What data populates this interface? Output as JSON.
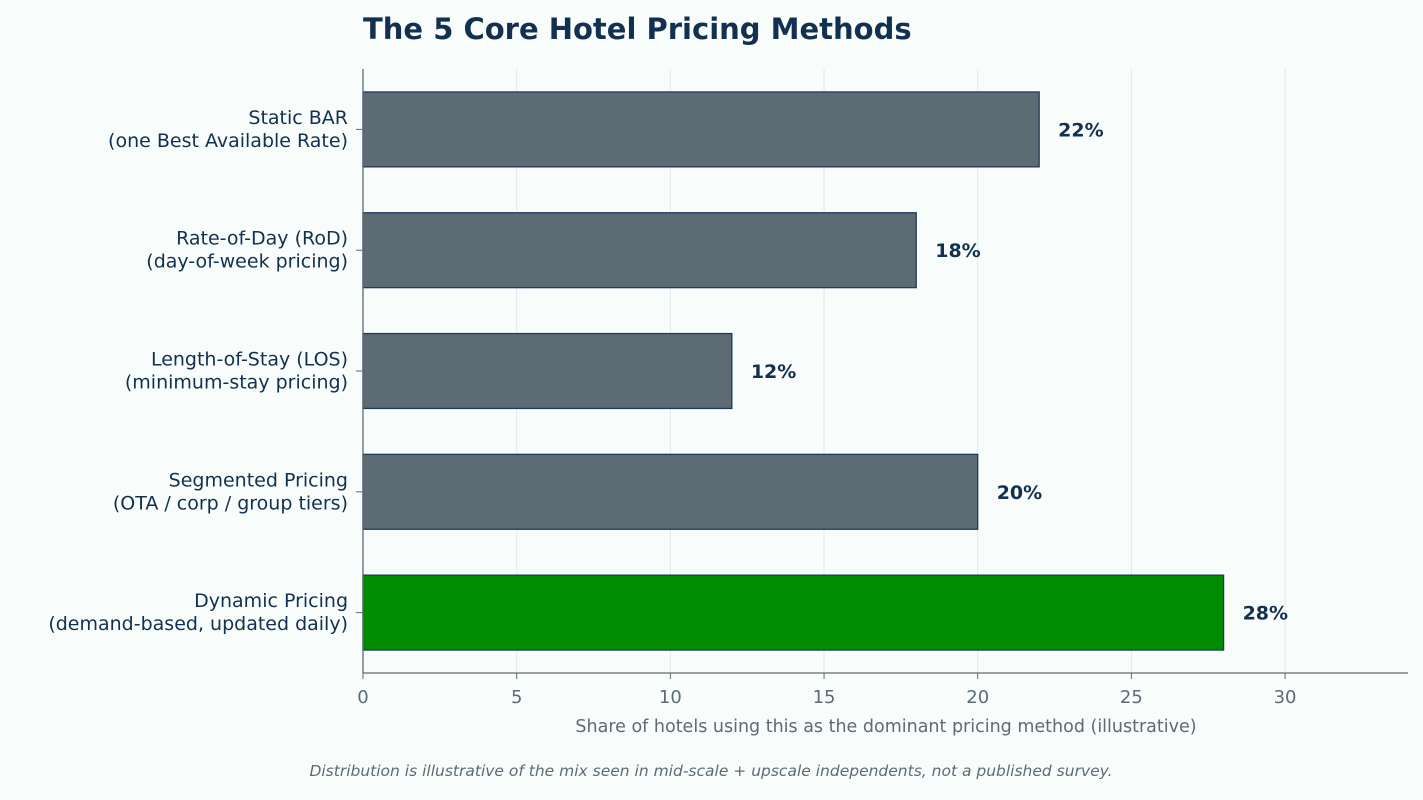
{
  "chart_data": {
    "type": "bar",
    "orientation": "horizontal",
    "title": "The 5 Core Hotel Pricing Methods",
    "xlabel": "Share of hotels using this as the dominant pricing method (illustrative)",
    "ylabel": "",
    "footnote": "Distribution is illustrative of the mix seen in mid-scale + upscale independents, not a published survey.",
    "categories": [
      [
        "Static BAR",
        "(one Best Available Rate)"
      ],
      [
        "Rate-of-Day (RoD)",
        "(day-of-week pricing)"
      ],
      [
        "Length-of-Stay (LOS)",
        "(minimum-stay pricing)"
      ],
      [
        "Segmented Pricing",
        "(OTA / corp / group tiers)"
      ],
      [
        "Dynamic Pricing",
        "(demand-based, updated daily)"
      ]
    ],
    "values": [
      22,
      18,
      12,
      20,
      28
    ],
    "value_labels": [
      "22%",
      "18%",
      "12%",
      "20%",
      "28%"
    ],
    "highlight_index": 4,
    "xlim": [
      0,
      34
    ],
    "xticks": [
      0,
      5,
      10,
      15,
      20,
      25,
      30
    ],
    "grid": "vertical",
    "legend": "none",
    "colors": {
      "bar": "#5d6b75",
      "highlight_bar": "#008c00",
      "bar_edge": "#1f3a5a",
      "title": "#12304f",
      "label": "#12304f",
      "tick": "#5d6b75",
      "axis": "#5d6b75",
      "grid": "#e3e8e8",
      "footnote": "#5d6b75",
      "background": "#f8fcfb"
    }
  }
}
